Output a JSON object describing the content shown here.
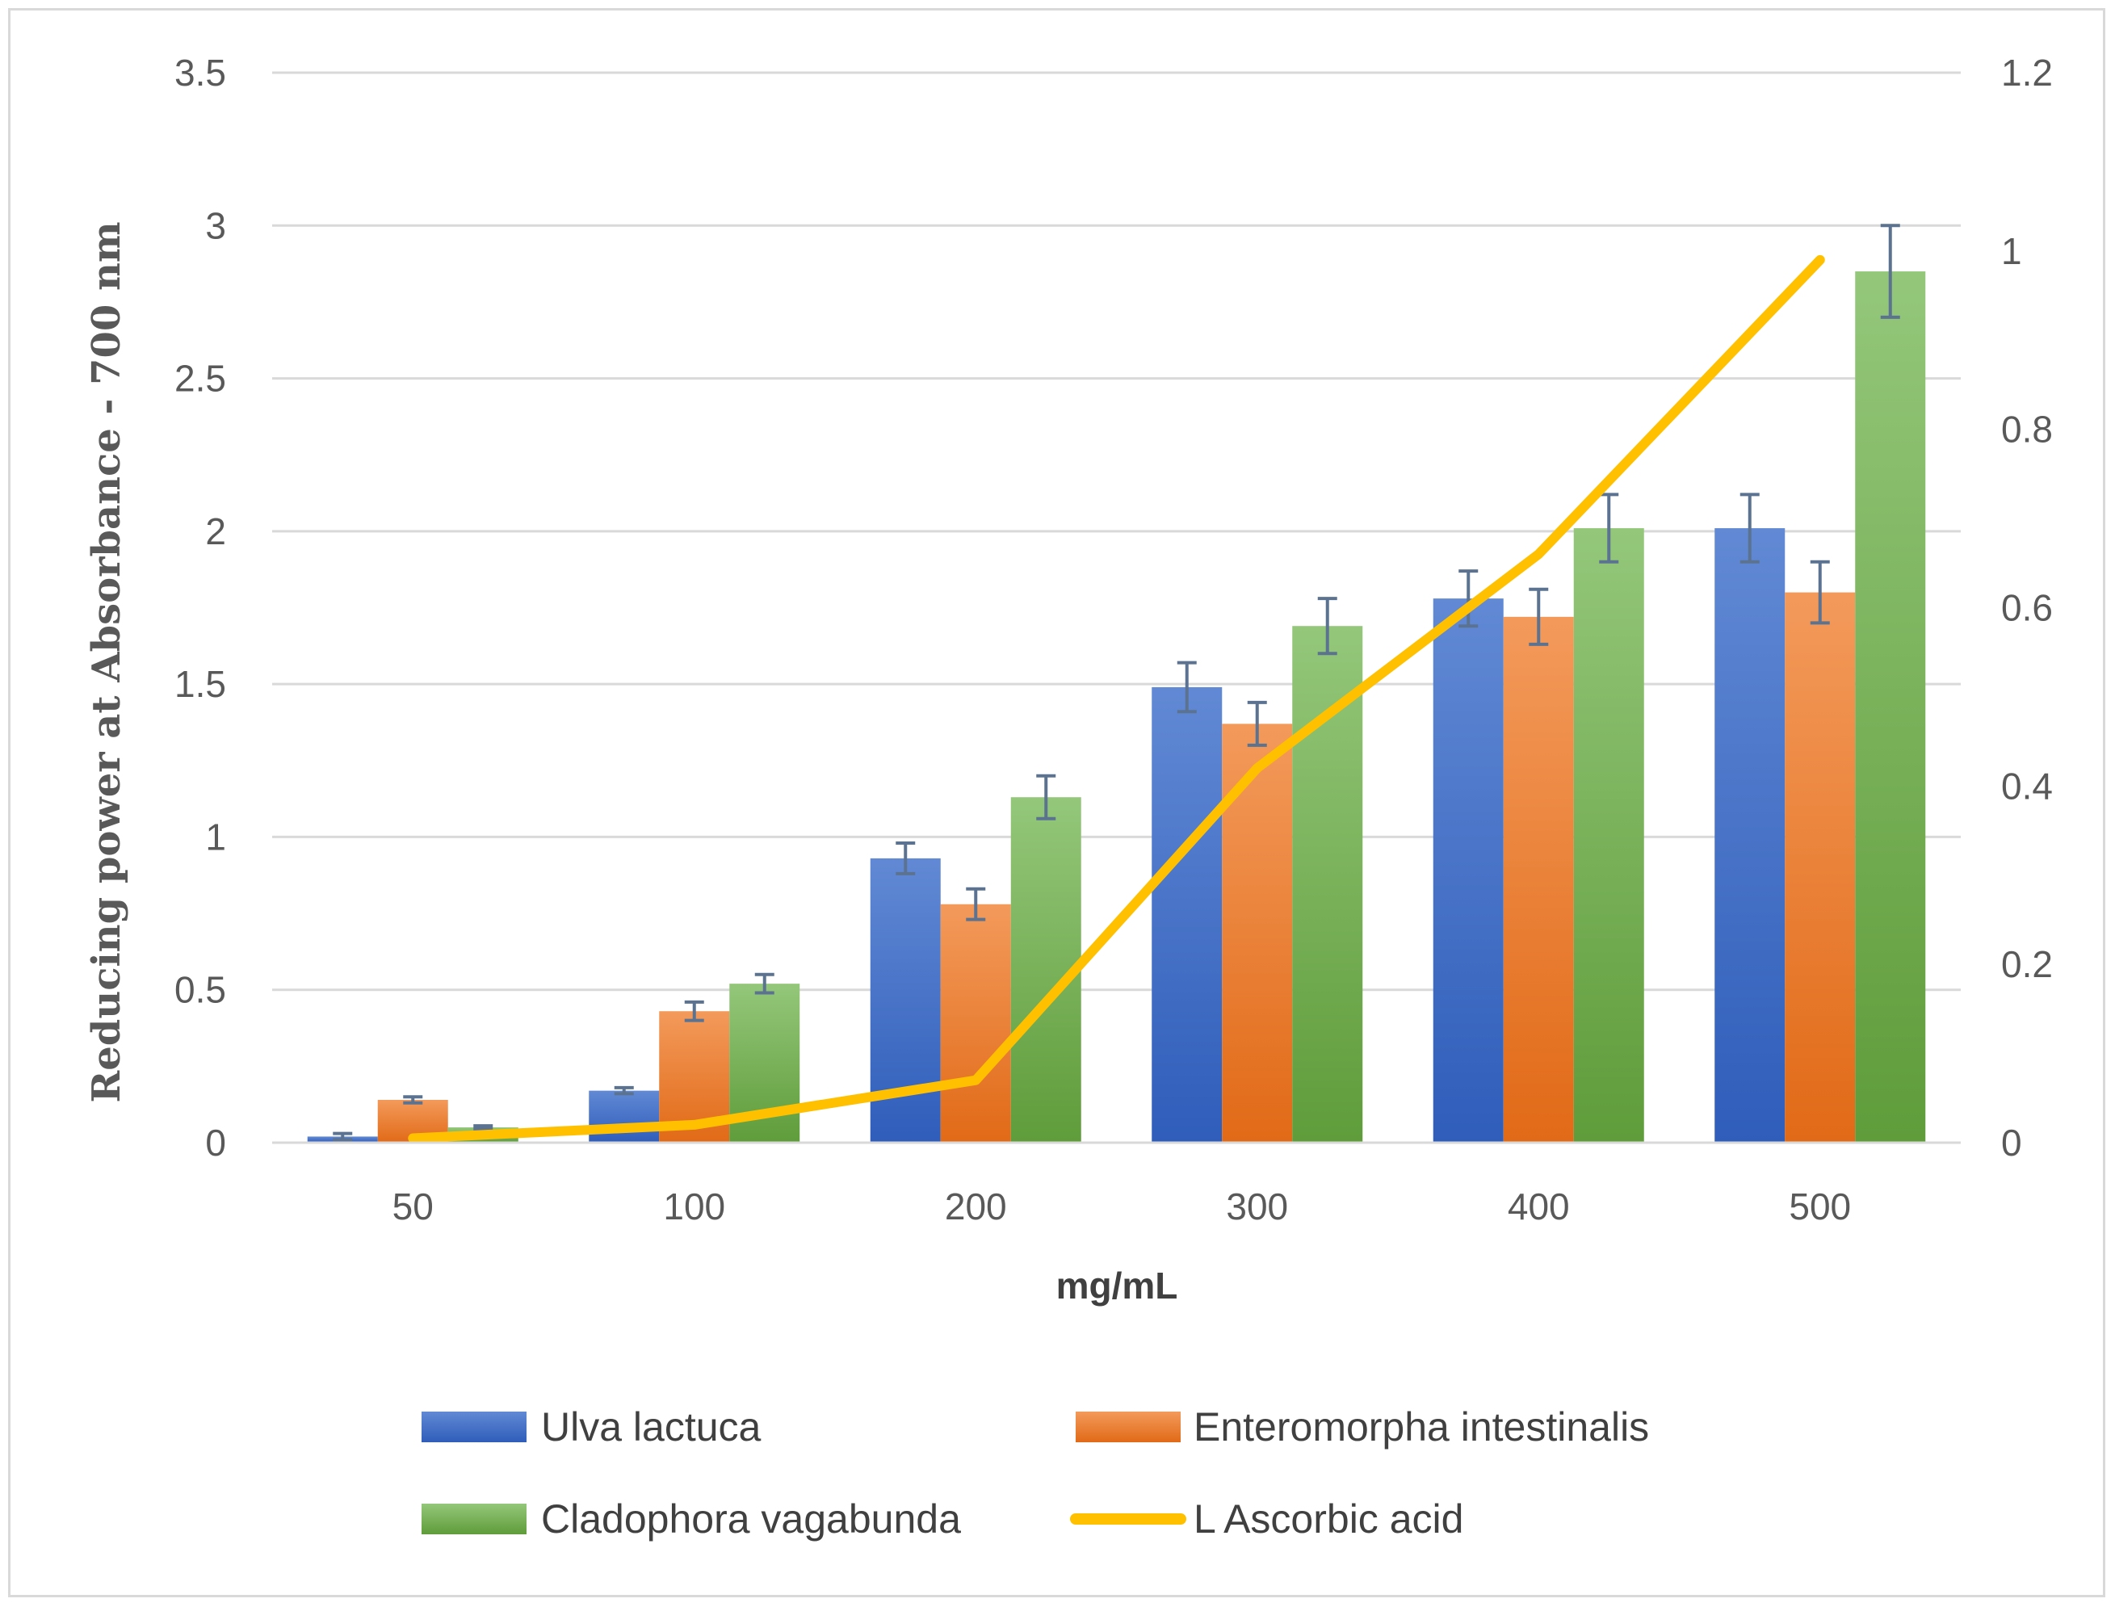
{
  "chart_data": {
    "type": "bar",
    "title": "",
    "xlabel": "mg/mL",
    "ylabel": "Reducing power at Absorbance - 700 nm",
    "categories": [
      "50",
      "100",
      "200",
      "300",
      "400",
      "500"
    ],
    "ylim": [
      0,
      3.5
    ],
    "y_ticks": [
      "0",
      "0.5",
      "1",
      "1.5",
      "2",
      "2.5",
      "3",
      "3.5"
    ],
    "y2lim": [
      0,
      1.2
    ],
    "y2_ticks": [
      "0",
      "0.2",
      "0.4",
      "0.6",
      "0.8",
      "1",
      "1.2"
    ],
    "grid": true,
    "legend_position": "bottom",
    "series": [
      {
        "name": "Ulva lactuca",
        "type": "bar",
        "axis": "left",
        "color": "#4472c4",
        "values": [
          0.02,
          0.17,
          0.93,
          1.49,
          1.78,
          2.01
        ],
        "errors": [
          0.01,
          0.01,
          0.05,
          0.08,
          0.09,
          0.11
        ]
      },
      {
        "name": "Enteromorpha intestinalis",
        "type": "bar",
        "axis": "left",
        "color": "#ed7d31",
        "values": [
          0.14,
          0.43,
          0.78,
          1.37,
          1.72,
          1.8
        ],
        "errors": [
          0.01,
          0.03,
          0.05,
          0.07,
          0.09,
          0.1
        ]
      },
      {
        "name": "Cladophora vagabunda",
        "type": "bar",
        "axis": "left",
        "color": "#70ad47",
        "values": [
          0.05,
          0.52,
          1.13,
          1.69,
          2.01,
          2.85
        ],
        "errors": [
          0.005,
          0.03,
          0.07,
          0.09,
          0.11,
          0.15
        ]
      },
      {
        "name": "L Ascorbic acid",
        "type": "line",
        "axis": "right",
        "color": "#ffc000",
        "values": [
          0.005,
          0.02,
          0.07,
          0.42,
          0.66,
          0.99
        ]
      }
    ]
  }
}
